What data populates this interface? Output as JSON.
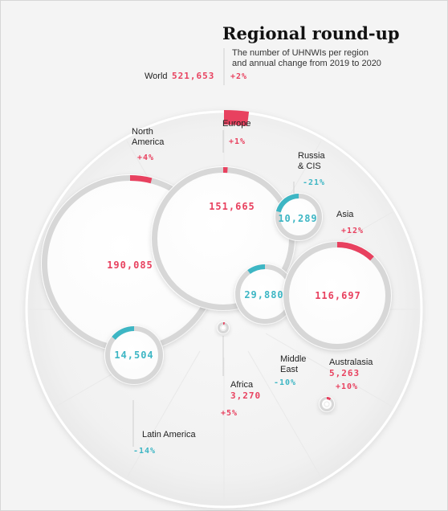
{
  "chart_data": {
    "type": "bubble",
    "title": "Regional round-up",
    "subtitle_lines": [
      "The number of UHNWIs per region",
      "and annual change from 2019 to 2020"
    ],
    "total": {
      "label": "World",
      "value": 521653,
      "value_label": "521,653",
      "change": 2,
      "change_label": "+2%"
    },
    "regions": [
      {
        "label_lines": [
          "North",
          "America"
        ],
        "value": 190085,
        "value_label": "190,085",
        "change": 4,
        "change_label": "+4%"
      },
      {
        "label_lines": [
          "Europe"
        ],
        "value": 151665,
        "value_label": "151,665",
        "change": 1,
        "change_label": "+1%"
      },
      {
        "label_lines": [
          "Russia",
          "& CIS"
        ],
        "value": 10289,
        "value_label": "10,289",
        "change": -21,
        "change_label": "-21%"
      },
      {
        "label_lines": [
          "Asia"
        ],
        "value": 116697,
        "value_label": "116,697",
        "change": 12,
        "change_label": "+12%"
      },
      {
        "label_lines": [
          "Middle",
          "East"
        ],
        "value": 29880,
        "value_label": "29,880",
        "change": -10,
        "change_label": "-10%"
      },
      {
        "label_lines": [
          "Australasia"
        ],
        "value": 5263,
        "value_label": "5,263",
        "change": 10,
        "change_label": "+10%"
      },
      {
        "label_lines": [
          "Africa"
        ],
        "value": 3270,
        "value_label": "3,270",
        "change": 5,
        "change_label": "+5%"
      },
      {
        "label_lines": [
          "Latin America"
        ],
        "value": 14504,
        "value_label": "14,504",
        "change": -14,
        "change_label": "-14%"
      }
    ],
    "colors": {
      "positive": "#e8415f",
      "negative": "#3db6c4",
      "ring_track": "#d7d7d7",
      "bubble": "#ffffff"
    }
  }
}
